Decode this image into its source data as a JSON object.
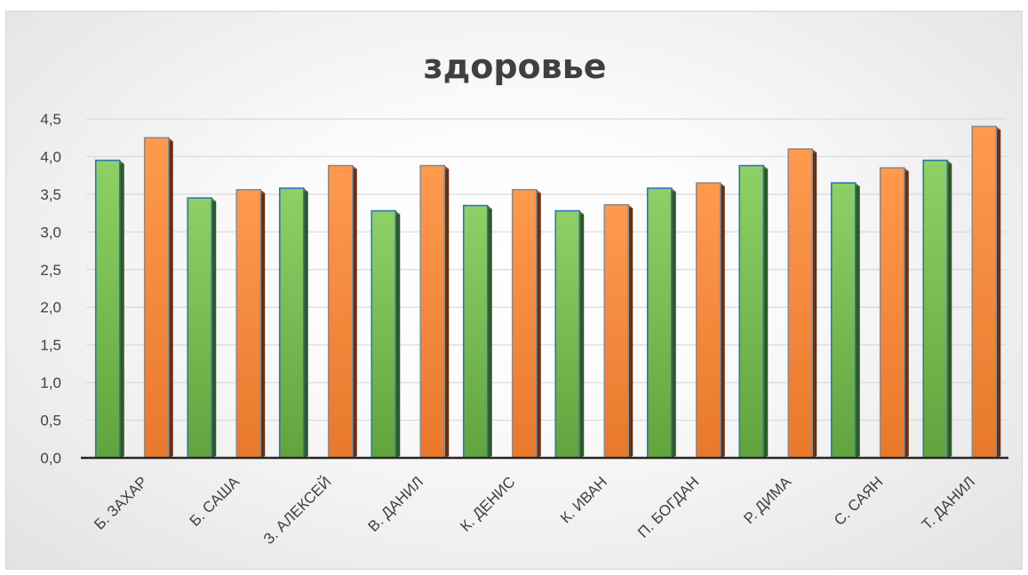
{
  "chart_data": {
    "type": "bar",
    "title": "здоровье",
    "xlabel": "",
    "ylabel": "",
    "ylim": [
      0,
      4.5
    ],
    "yticks": [
      "0,0",
      "0,5",
      "1,0",
      "1,5",
      "2,0",
      "2,5",
      "3,0",
      "3,5",
      "4,0",
      "4,5"
    ],
    "grid": true,
    "legend": "none",
    "categories": [
      "Б. ЗАХАР",
      "Б. САША",
      "З. АЛЕКСЕЙ",
      "В. ДАНИЛ",
      "К. ДЕНИС",
      "К. ИВАН",
      "П. БОГДАН",
      "Р. ДИМА",
      "С. САЯН",
      "Т. ДАНИЛ"
    ],
    "series": [
      {
        "values": [
          3.95,
          3.45,
          3.58,
          3.28,
          3.35,
          3.28,
          3.58,
          3.88,
          3.65,
          3.95
        ],
        "color": "#70ad47"
      },
      {
        "values": [
          4.25,
          3.56,
          3.88,
          3.88,
          3.56,
          3.36,
          3.65,
          4.1,
          3.85,
          4.4
        ],
        "color": "#ed7d31"
      }
    ]
  }
}
